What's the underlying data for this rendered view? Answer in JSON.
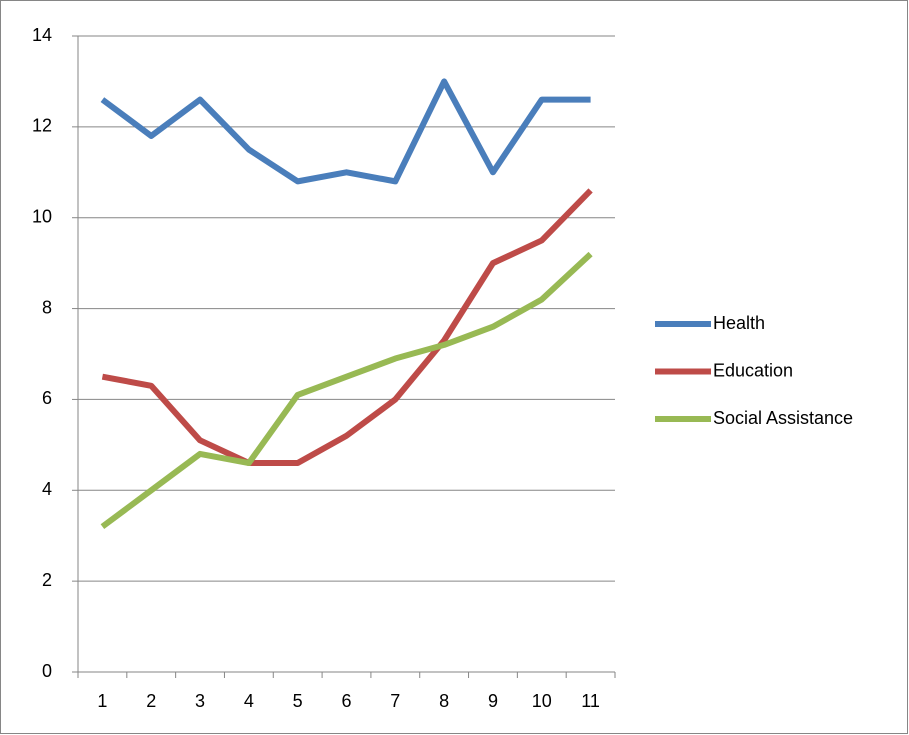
{
  "chart_data": {
    "type": "line",
    "categories": [
      "1",
      "2",
      "3",
      "4",
      "5",
      "6",
      "7",
      "8",
      "9",
      "10",
      "11"
    ],
    "series": [
      {
        "name": "Health",
        "color": "#4a7ebb",
        "values": [
          12.6,
          11.8,
          12.6,
          11.5,
          10.8,
          11.0,
          10.8,
          13.0,
          11.0,
          12.6,
          12.6
        ]
      },
      {
        "name": "Education",
        "color": "#be4b48",
        "values": [
          6.5,
          6.3,
          5.1,
          4.6,
          4.6,
          5.2,
          6.0,
          7.3,
          9.0,
          9.5,
          10.6
        ]
      },
      {
        "name": "Social Assistance",
        "color": "#98b954",
        "values": [
          3.2,
          4.0,
          4.8,
          4.6,
          6.1,
          6.5,
          6.9,
          7.2,
          7.6,
          8.2,
          9.2
        ]
      }
    ],
    "ylim": [
      0,
      14
    ],
    "yticks": [
      0,
      2,
      4,
      6,
      8,
      10,
      12,
      14
    ],
    "grid": true,
    "legend": "right"
  }
}
